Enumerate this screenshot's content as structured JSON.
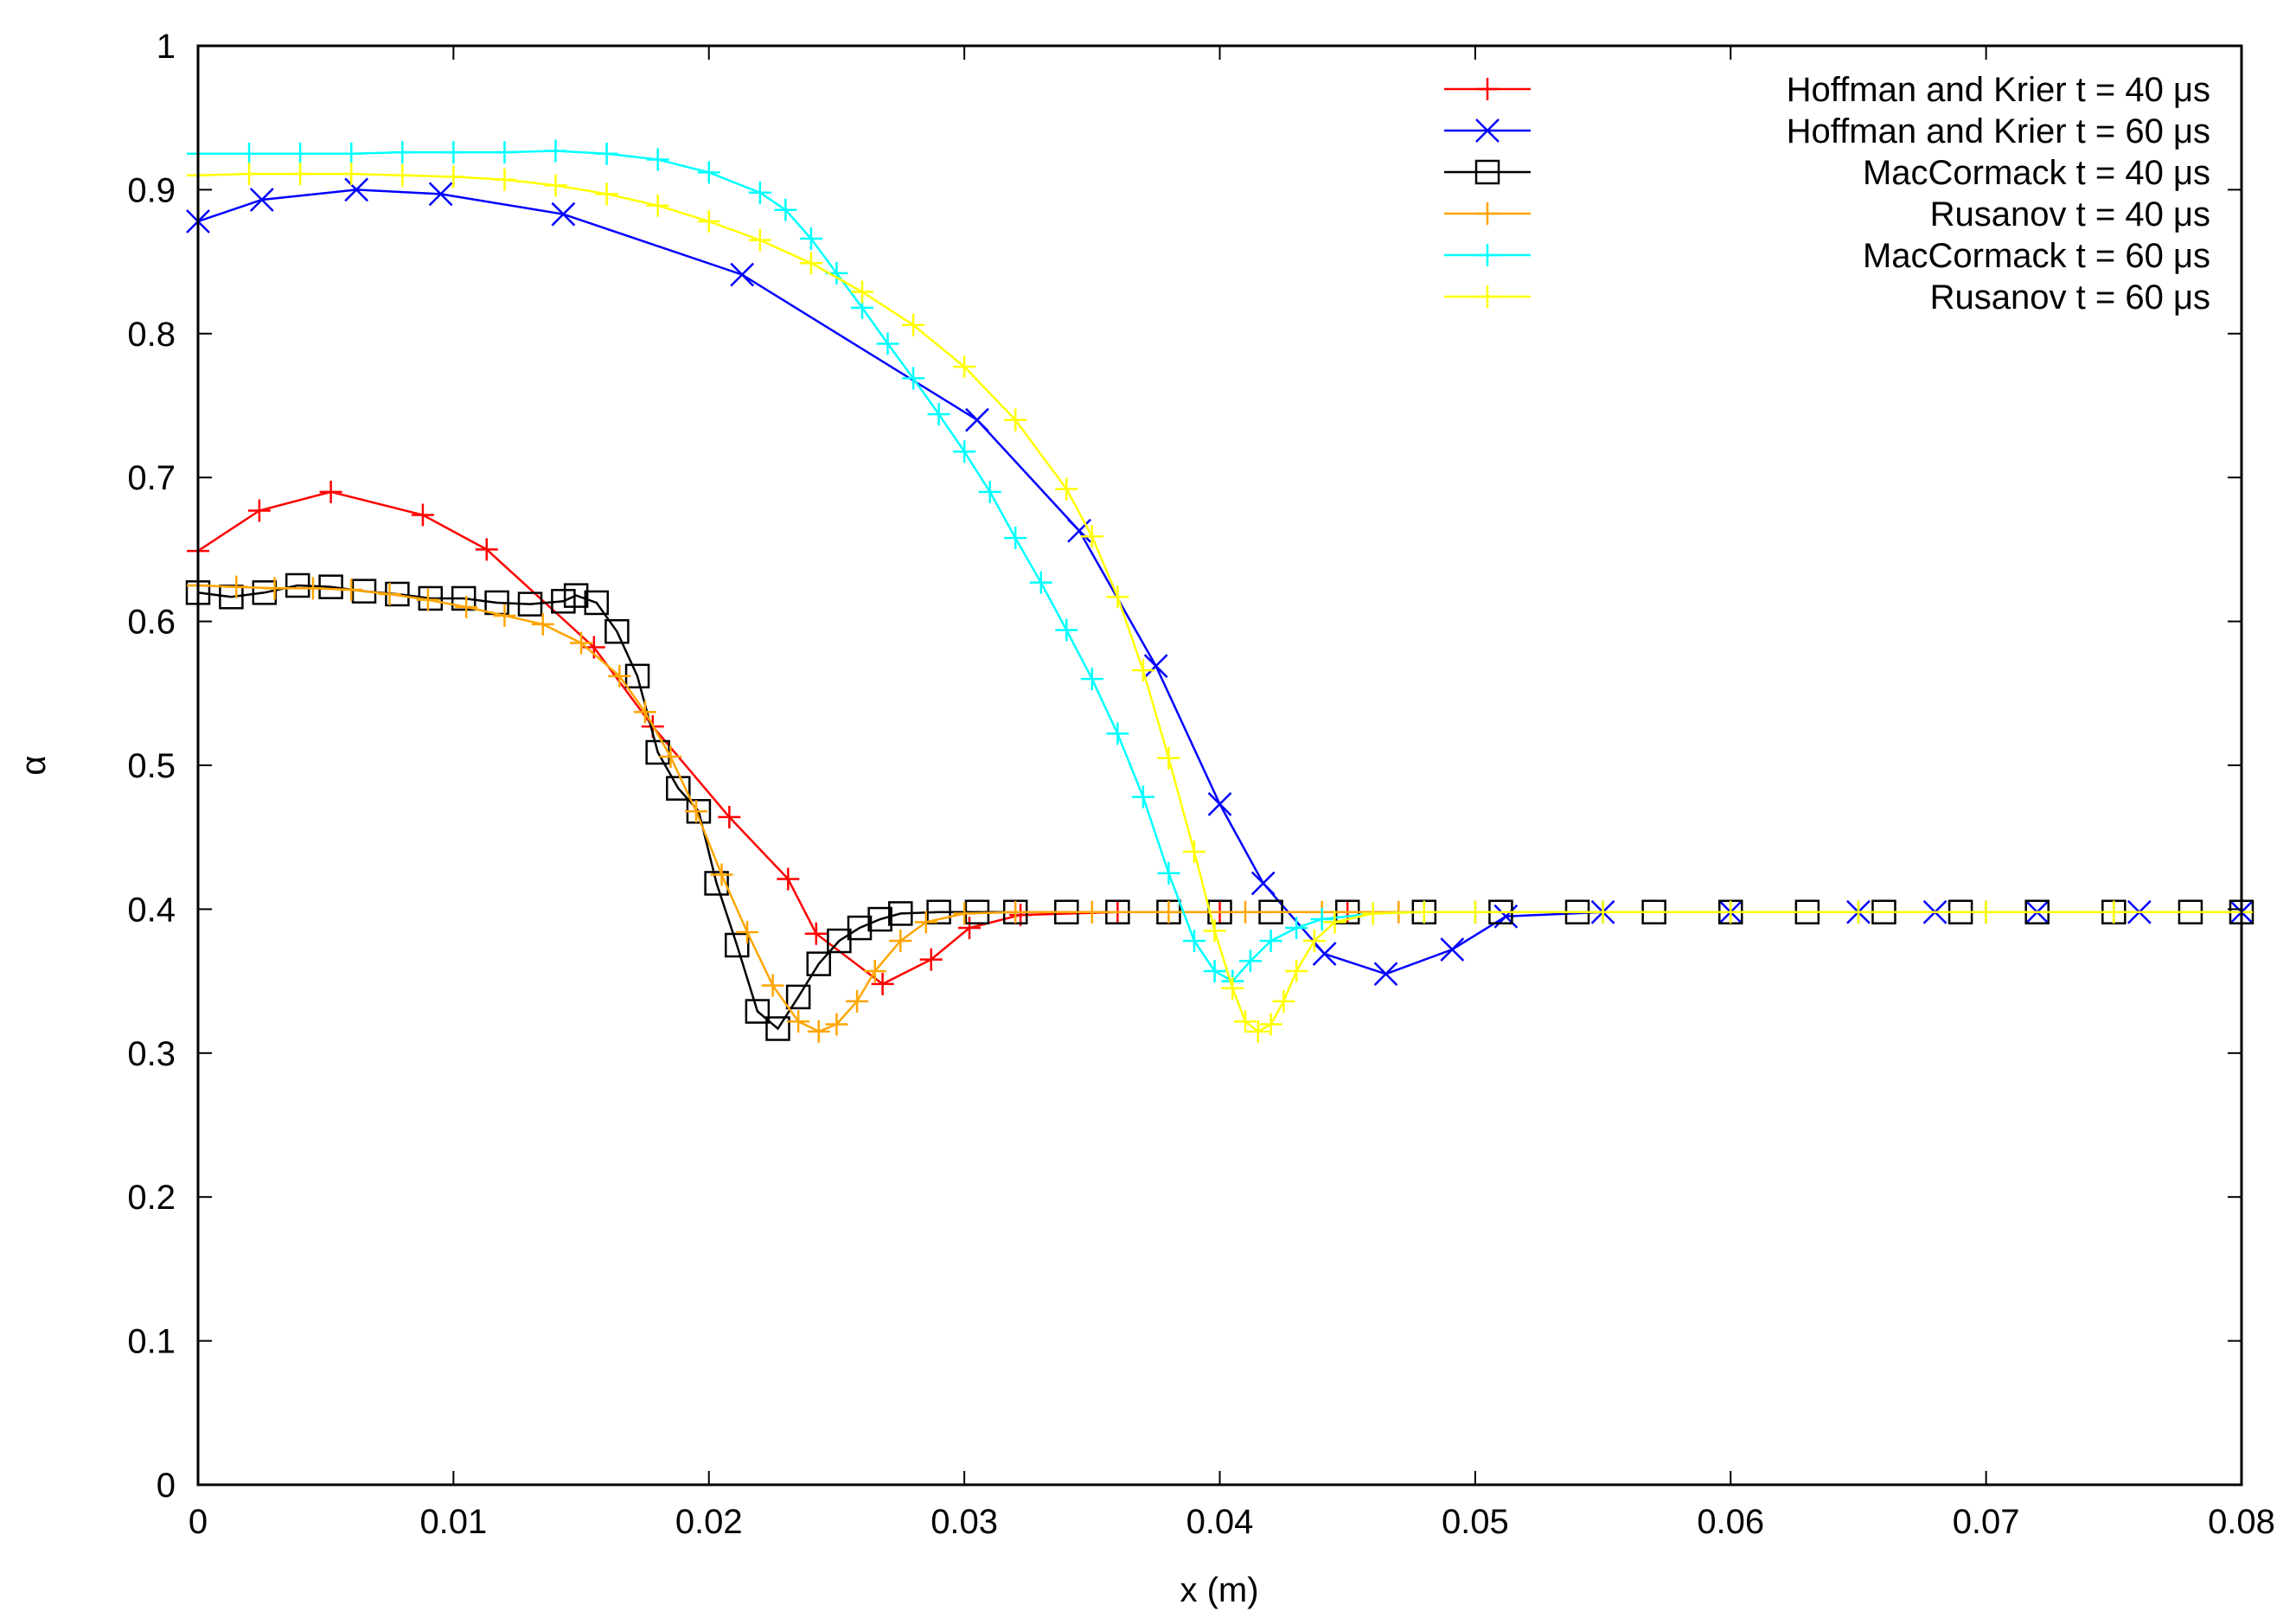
{
  "chart_data": {
    "type": "line",
    "title": "",
    "xlabel": "x (m)",
    "ylabel": "α",
    "xlim": [
      0,
      0.08
    ],
    "ylim": [
      0,
      1
    ],
    "xticks": [
      0,
      0.01,
      0.02,
      0.03,
      0.04,
      0.05,
      0.06,
      0.07,
      0.08
    ],
    "xtick_labels": [
      "0",
      "0.01",
      "0.02",
      "0.03",
      "0.04",
      "0.05",
      "0.06",
      "0.07",
      "0.08"
    ],
    "yticks": [
      0,
      0.1,
      0.2,
      0.3,
      0.4,
      0.5,
      0.6,
      0.7,
      0.8,
      0.9,
      1
    ],
    "ytick_labels": [
      "0",
      "0.1",
      "0.2",
      "0.3",
      "0.4",
      "0.5",
      "0.6",
      "0.7",
      "0.8",
      "0.9",
      "1"
    ],
    "grid": false,
    "legend_position": "top-right",
    "series": [
      {
        "name": "Hoffman and Krier t = 40 μs",
        "color": "#ff0000",
        "marker": "plus",
        "x": [
          0,
          0.0024,
          0.0052,
          0.0088,
          0.0113,
          0.0155,
          0.0178,
          0.0208,
          0.0231,
          0.0242,
          0.0268,
          0.0287,
          0.0302,
          0.0322,
          0.036,
          0.04,
          0.045,
          0.05,
          0.055,
          0.06,
          0.065,
          0.07,
          0.075,
          0.08
        ],
        "y": [
          0.649,
          0.677,
          0.69,
          0.674,
          0.65,
          0.582,
          0.527,
          0.464,
          0.421,
          0.383,
          0.348,
          0.365,
          0.387,
          0.396,
          0.398,
          0.398,
          0.398,
          0.398,
          0.398,
          0.398,
          0.398,
          0.398,
          0.398,
          0.398
        ]
      },
      {
        "name": "Hoffman and Krier t = 60 μs",
        "color": "#0000ff",
        "marker": "x",
        "x": [
          0,
          0.0025,
          0.0062,
          0.0095,
          0.0143,
          0.0213,
          0.0305,
          0.0345,
          0.0375,
          0.04,
          0.0417,
          0.0441,
          0.0465,
          0.0491,
          0.0512,
          0.055,
          0.06,
          0.065,
          0.068,
          0.072,
          0.076,
          0.08
        ],
        "y": [
          0.878,
          0.893,
          0.9,
          0.897,
          0.883,
          0.841,
          0.74,
          0.663,
          0.569,
          0.473,
          0.418,
          0.369,
          0.355,
          0.372,
          0.395,
          0.398,
          0.398,
          0.398,
          0.398,
          0.398,
          0.398,
          0.398
        ]
      },
      {
        "name": "MacCormack t = 40 μs",
        "color": "#000000",
        "marker": "square",
        "x": [
          0,
          0.0013,
          0.0026,
          0.0039,
          0.0052,
          0.0065,
          0.0078,
          0.0091,
          0.0104,
          0.0117,
          0.013,
          0.0143,
          0.0148,
          0.0156,
          0.0164,
          0.0172,
          0.018,
          0.0188,
          0.0196,
          0.0203,
          0.0211,
          0.0219,
          0.0227,
          0.0235,
          0.0243,
          0.0251,
          0.0259,
          0.0267,
          0.0275,
          0.029,
          0.0305,
          0.032,
          0.034,
          0.036,
          0.038,
          0.04,
          0.042,
          0.045,
          0.048,
          0.051,
          0.054,
          0.057,
          0.06,
          0.063,
          0.066,
          0.069,
          0.072,
          0.075,
          0.078,
          0.08
        ],
        "y": [
          0.62,
          0.617,
          0.62,
          0.625,
          0.624,
          0.621,
          0.619,
          0.616,
          0.616,
          0.613,
          0.612,
          0.614,
          0.618,
          0.613,
          0.593,
          0.562,
          0.509,
          0.484,
          0.468,
          0.418,
          0.375,
          0.329,
          0.317,
          0.339,
          0.362,
          0.378,
          0.387,
          0.393,
          0.397,
          0.398,
          0.398,
          0.398,
          0.398,
          0.398,
          0.398,
          0.398,
          0.398,
          0.398,
          0.398,
          0.398,
          0.398,
          0.398,
          0.398,
          0.398,
          0.398,
          0.398,
          0.398,
          0.398,
          0.398,
          0.398
        ]
      },
      {
        "name": "Rusanov t = 40 μs",
        "color": "#ffa500",
        "marker": "plus",
        "x": [
          0,
          0.0015,
          0.003,
          0.0045,
          0.006,
          0.0075,
          0.009,
          0.0105,
          0.012,
          0.0135,
          0.015,
          0.0165,
          0.0175,
          0.0185,
          0.0195,
          0.0205,
          0.0215,
          0.0225,
          0.0235,
          0.0243,
          0.025,
          0.0258,
          0.0265,
          0.0275,
          0.0285,
          0.03,
          0.032,
          0.035,
          0.038,
          0.041,
          0.044,
          0.047,
          0.05,
          0.055,
          0.06,
          0.065,
          0.07,
          0.075,
          0.08
        ],
        "y": [
          0.625,
          0.624,
          0.623,
          0.623,
          0.622,
          0.619,
          0.615,
          0.61,
          0.604,
          0.598,
          0.585,
          0.562,
          0.537,
          0.506,
          0.468,
          0.424,
          0.384,
          0.347,
          0.322,
          0.315,
          0.32,
          0.336,
          0.357,
          0.378,
          0.391,
          0.397,
          0.398,
          0.398,
          0.398,
          0.398,
          0.398,
          0.398,
          0.398,
          0.398,
          0.398,
          0.398,
          0.398,
          0.398,
          0.398
        ]
      },
      {
        "name": "MacCormack t = 60 μs",
        "color": "#00ffff",
        "marker": "plus",
        "x": [
          0,
          0.002,
          0.004,
          0.006,
          0.008,
          0.01,
          0.012,
          0.014,
          0.016,
          0.018,
          0.02,
          0.022,
          0.023,
          0.024,
          0.025,
          0.026,
          0.027,
          0.028,
          0.029,
          0.03,
          0.031,
          0.032,
          0.033,
          0.034,
          0.035,
          0.036,
          0.037,
          0.038,
          0.039,
          0.0398,
          0.0405,
          0.0412,
          0.042,
          0.043,
          0.044,
          0.046,
          0.048,
          0.05,
          0.055,
          0.06,
          0.065,
          0.07,
          0.075,
          0.08
        ],
        "y": [
          0.925,
          0.925,
          0.925,
          0.925,
          0.926,
          0.926,
          0.926,
          0.927,
          0.925,
          0.921,
          0.912,
          0.898,
          0.886,
          0.866,
          0.842,
          0.818,
          0.793,
          0.769,
          0.744,
          0.718,
          0.69,
          0.658,
          0.627,
          0.594,
          0.56,
          0.522,
          0.478,
          0.425,
          0.378,
          0.357,
          0.35,
          0.364,
          0.378,
          0.387,
          0.393,
          0.397,
          0.398,
          0.398,
          0.398,
          0.398,
          0.398,
          0.398,
          0.398,
          0.398
        ]
      },
      {
        "name": "Rusanov t = 60 μs",
        "color": "#ffff00",
        "marker": "plus",
        "x": [
          0,
          0.002,
          0.004,
          0.006,
          0.008,
          0.01,
          0.012,
          0.014,
          0.016,
          0.018,
          0.02,
          0.022,
          0.024,
          0.026,
          0.028,
          0.03,
          0.032,
          0.034,
          0.035,
          0.036,
          0.037,
          0.038,
          0.039,
          0.0398,
          0.0405,
          0.041,
          0.0415,
          0.042,
          0.0425,
          0.043,
          0.0437,
          0.0445,
          0.046,
          0.048,
          0.05,
          0.055,
          0.06,
          0.065,
          0.07,
          0.075,
          0.08
        ],
        "y": [
          0.91,
          0.911,
          0.911,
          0.911,
          0.91,
          0.909,
          0.907,
          0.903,
          0.897,
          0.889,
          0.878,
          0.865,
          0.849,
          0.829,
          0.806,
          0.777,
          0.74,
          0.692,
          0.659,
          0.617,
          0.566,
          0.505,
          0.44,
          0.385,
          0.345,
          0.322,
          0.315,
          0.32,
          0.336,
          0.357,
          0.378,
          0.391,
          0.397,
          0.398,
          0.398,
          0.398,
          0.398,
          0.398,
          0.398,
          0.398,
          0.398
        ]
      }
    ]
  }
}
